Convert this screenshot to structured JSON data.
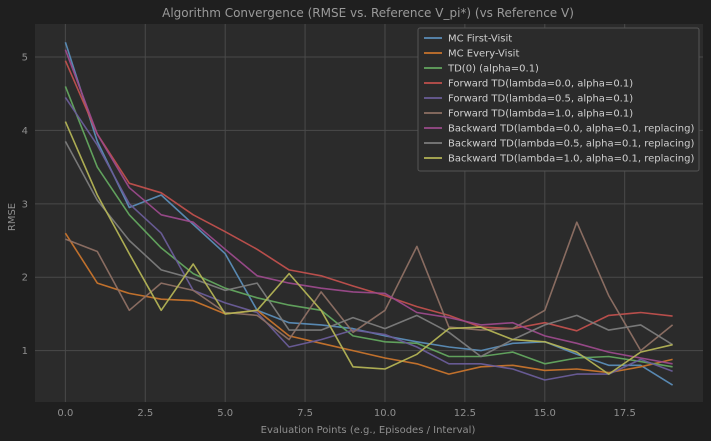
{
  "chart_data": {
    "type": "line",
    "title": "Algorithm Convergence (RMSE vs. Reference V_pi*) (vs Reference V)",
    "xlabel": "Evaluation Points (e.g., Episodes / Interval)",
    "ylabel": "RMSE",
    "xlim": [
      -0.95,
      19.95
    ],
    "ylim": [
      0.3,
      5.45
    ],
    "xticks": [
      0.0,
      2.5,
      5.0,
      7.5,
      10.0,
      12.5,
      15.0,
      17.5
    ],
    "xtick_labels": [
      "0.0",
      "2.5",
      "5.0",
      "7.5",
      "10.0",
      "12.5",
      "15.0",
      "17.5"
    ],
    "yticks": [
      1,
      2,
      3,
      4,
      5
    ],
    "ytick_labels": [
      "1",
      "2",
      "3",
      "4",
      "5"
    ],
    "grid": true,
    "legend_position": "top-right",
    "x": [
      0,
      1,
      2,
      3,
      4,
      5,
      6,
      7,
      8,
      9,
      10,
      11,
      12,
      13,
      14,
      15,
      16,
      17,
      18,
      19
    ],
    "series": [
      {
        "name": "MC First-Visit",
        "color": "#5b8db8",
        "values": [
          5.2,
          3.85,
          2.95,
          3.12,
          2.72,
          2.32,
          1.55,
          1.38,
          1.35,
          1.3,
          1.2,
          1.12,
          1.05,
          1.0,
          1.1,
          1.12,
          0.95,
          0.8,
          0.8,
          0.53
        ]
      },
      {
        "name": "MC Every-Visit",
        "color": "#c8742c",
        "values": [
          2.6,
          1.92,
          1.78,
          1.7,
          1.68,
          1.5,
          1.55,
          1.2,
          1.1,
          1.0,
          0.9,
          0.82,
          0.68,
          0.78,
          0.8,
          0.73,
          0.75,
          0.7,
          0.78,
          0.88
        ]
      },
      {
        "name": "TD(0) (alpha=0.1)",
        "color": "#63a65f",
        "values": [
          4.6,
          3.5,
          2.85,
          2.4,
          2.05,
          1.85,
          1.72,
          1.62,
          1.55,
          1.2,
          1.12,
          1.1,
          0.92,
          0.92,
          0.98,
          0.82,
          0.9,
          0.92,
          0.85,
          0.78
        ]
      },
      {
        "name": "Forward TD(lambda=0.0, alpha=0.1)",
        "color": "#c0504d",
        "values": [
          4.95,
          3.95,
          3.28,
          3.15,
          2.85,
          2.62,
          2.38,
          2.1,
          2.02,
          1.88,
          1.75,
          1.6,
          1.48,
          1.32,
          1.3,
          1.38,
          1.27,
          1.48,
          1.52,
          1.47
        ]
      },
      {
        "name": "Forward TD(lambda=0.5, alpha=0.1)",
        "color": "#6a5d99",
        "values": [
          4.45,
          3.8,
          3.0,
          2.6,
          1.82,
          1.65,
          1.52,
          1.05,
          1.15,
          1.28,
          1.22,
          1.05,
          0.82,
          0.82,
          0.75,
          0.6,
          0.68,
          0.68,
          0.88,
          0.72
        ]
      },
      {
        "name": "Forward TD(lambda=1.0, alpha=0.1)",
        "color": "#8e7064",
        "values": [
          2.52,
          2.35,
          1.55,
          1.92,
          1.82,
          1.52,
          1.48,
          1.15,
          1.8,
          1.25,
          1.55,
          2.42,
          1.32,
          1.28,
          1.3,
          1.55,
          2.75,
          1.75,
          1.0,
          1.35
        ]
      },
      {
        "name": "Backward TD(lambda=0.0, alpha=0.1, replacing)",
        "color": "#9b4a8b",
        "values": [
          5.1,
          3.95,
          3.22,
          2.85,
          2.75,
          2.38,
          2.02,
          1.92,
          1.85,
          1.8,
          1.78,
          1.52,
          1.45,
          1.35,
          1.38,
          1.2,
          1.1,
          0.98,
          0.9,
          0.82
        ]
      },
      {
        "name": "Backward TD(lambda=0.5, alpha=0.1, replacing)",
        "color": "#7c7c7c",
        "values": [
          3.85,
          3.05,
          2.5,
          2.1,
          1.98,
          1.82,
          1.92,
          1.28,
          1.28,
          1.45,
          1.3,
          1.48,
          1.25,
          0.92,
          1.15,
          1.35,
          1.48,
          1.28,
          1.35,
          1.08
        ]
      },
      {
        "name": "Backward TD(lambda=1.0, alpha=0.1, replacing)",
        "color": "#b3b355",
        "values": [
          4.12,
          3.12,
          2.32,
          1.55,
          2.18,
          1.5,
          1.55,
          2.05,
          1.55,
          0.78,
          0.75,
          0.95,
          1.3,
          1.32,
          1.15,
          1.12,
          0.98,
          0.68,
          0.98,
          1.08
        ]
      }
    ]
  }
}
